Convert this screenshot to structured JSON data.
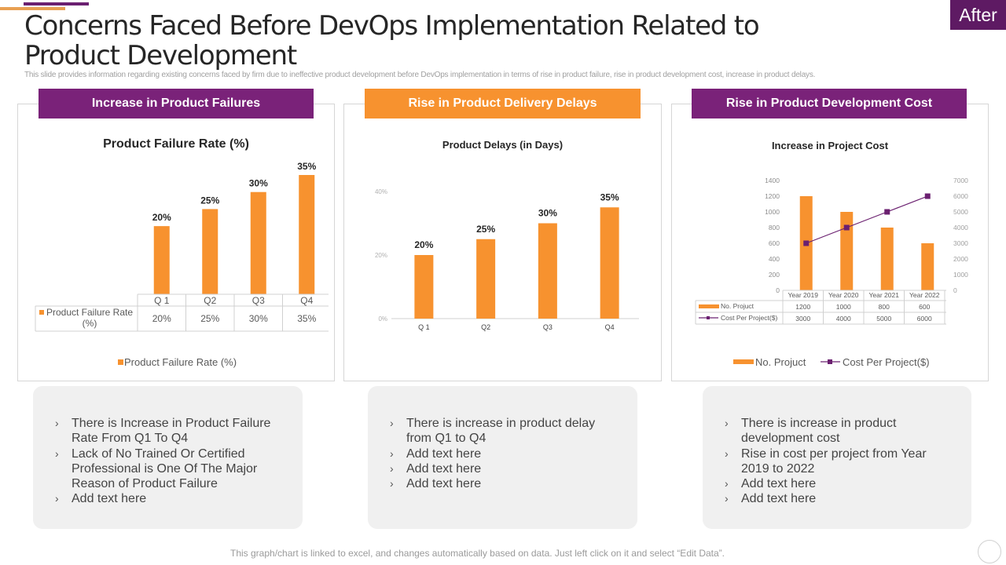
{
  "slide": {
    "title": "Concerns Faced Before DevOps Implementation Related to Product Development",
    "subtitle": "This slide provides information regarding existing concerns faced by firm due to ineffective product development before DevOps implementation  in terms of rise in product failure, rise in product development cost, increase in product delays.",
    "badge": "After",
    "footer": "This graph/chart is linked to excel, and changes automatically based on data. Just left click on it and select “Edit Data”.",
    "colors": {
      "purple": "#7a2279",
      "orange": "#f7922f",
      "dark_purple": "#5e1a63"
    }
  },
  "panels": [
    {
      "header": "Increase in Product Failures"
    },
    {
      "header": "Rise in Product Delivery Delays"
    },
    {
      "header": "Rise in Product Development Cost"
    }
  ],
  "notes": [
    {
      "items": [
        "There is Increase  in Product Failure Rate From Q1 To Q4",
        "Lack of No Trained Or Certified Professional is One Of The Major Reason of Product Failure",
        "Add text here"
      ]
    },
    {
      "items": [
        "There is increase in product delay from Q1 to Q4",
        "Add text here",
        "Add text here",
        "Add text here"
      ]
    },
    {
      "items": [
        "There is increase in product development  cost",
        "Rise in cost per project from Year 2019 to 2022",
        "Add text here",
        "Add text here"
      ]
    }
  ],
  "bullet_glyph": "›",
  "chart_data": [
    {
      "type": "bar",
      "title": "Product Failure Rate (%)",
      "categories": [
        "Q 1",
        "Q2",
        "Q3",
        "Q4"
      ],
      "series": [
        {
          "name": "Product Failure Rate (%)",
          "values": [
            20,
            25,
            30,
            35
          ],
          "labels": [
            "20%",
            "25%",
            "30%",
            "35%"
          ],
          "color": "#f7922f"
        }
      ],
      "data_table": true,
      "legend": "bottom",
      "ylim": [
        0,
        35
      ],
      "xlabel": "",
      "ylabel": ""
    },
    {
      "type": "bar",
      "title": "Product Delays (in Days)",
      "categories": [
        "Q 1",
        "Q2",
        "Q3",
        "Q4"
      ],
      "series": [
        {
          "name": "Product Delays (in Days)",
          "values": [
            20,
            25,
            30,
            35
          ],
          "labels": [
            "20%",
            "25%",
            "30%",
            "35%"
          ],
          "color": "#f7922f"
        }
      ],
      "yticks": [
        "0%",
        "20%",
        "40%"
      ],
      "ylim": [
        0,
        40
      ],
      "xlabel": "",
      "ylabel": ""
    },
    {
      "type": "bar",
      "title": "Increase in Project Cost",
      "categories": [
        "Year 2019",
        "Year 2020",
        "Year 2021",
        "Year 2022"
      ],
      "series": [
        {
          "name": "No. Projuct",
          "type": "bar",
          "axis": "left",
          "values": [
            1200,
            1000,
            800,
            600
          ],
          "color": "#f7922f"
        },
        {
          "name": "Cost Per Project($)",
          "type": "line",
          "axis": "right",
          "values": [
            3000,
            4000,
            5000,
            6000
          ],
          "color": "#6b2070"
        }
      ],
      "yticks_left": [
        "0",
        "200",
        "400",
        "600",
        "800",
        "1000",
        "1200",
        "1400"
      ],
      "yticks_right": [
        "0",
        "1000",
        "2000",
        "3000",
        "4000",
        "5000",
        "6000",
        "7000"
      ],
      "ylim_left": [
        0,
        1400
      ],
      "ylim_right": [
        0,
        7000
      ],
      "data_table": true,
      "legend": "bottom"
    }
  ]
}
